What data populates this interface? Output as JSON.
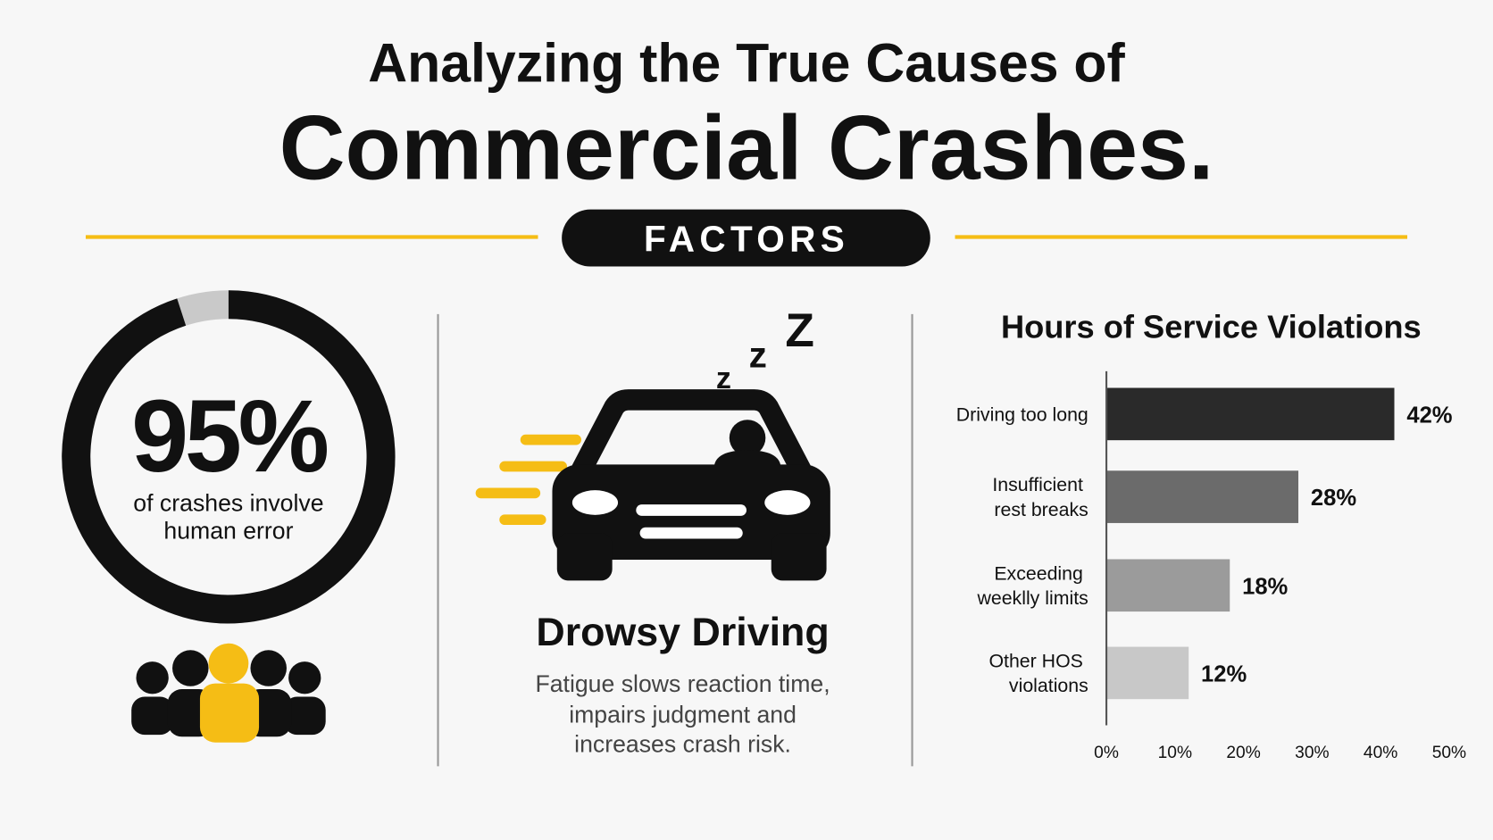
{
  "header": {
    "title": "Analyzing the True Causes of",
    "subtitle": "Commercial Crashes.",
    "badge": "FACTORS"
  },
  "chart_data": [
    {
      "type": "donut",
      "values": [
        95
      ],
      "value_labels": [
        "95%"
      ],
      "caption": [
        "of crashes involve",
        "human error"
      ],
      "color": "#111111",
      "track_color": "#c9c9c9"
    },
    {
      "type": "bar",
      "orientation": "horizontal",
      "title": "Hours of Service Violations",
      "categories": [
        "Driving too long",
        "Insufficient rest breaks",
        "Exceeding weeklly limits",
        "Other HOS violations"
      ],
      "values": [
        42,
        28,
        18,
        12
      ],
      "value_labels": [
        "42%",
        "28%",
        "18%",
        "12%"
      ],
      "colors": [
        "#2a2a2a",
        "#6b6b6b",
        "#9b9b9b",
        "#c8c8c8"
      ],
      "xlim": [
        0,
        50
      ],
      "xticks": [
        {
          "value": 0,
          "label": "0%"
        },
        {
          "value": 10,
          "label": "10%"
        },
        {
          "value": 20,
          "label": "20%"
        },
        {
          "value": 30,
          "label": "30%"
        },
        {
          "value": 40,
          "label": "40%"
        },
        {
          "value": 50,
          "label": "50%"
        }
      ],
      "grid": false
    }
  ],
  "feature": {
    "icon_text": [
      "z",
      "z",
      "Z"
    ],
    "title": "Drowsy Driving",
    "description": [
      "Fatigue slows reaction time,",
      "impairs judgment and",
      "increases crash risk."
    ]
  }
}
